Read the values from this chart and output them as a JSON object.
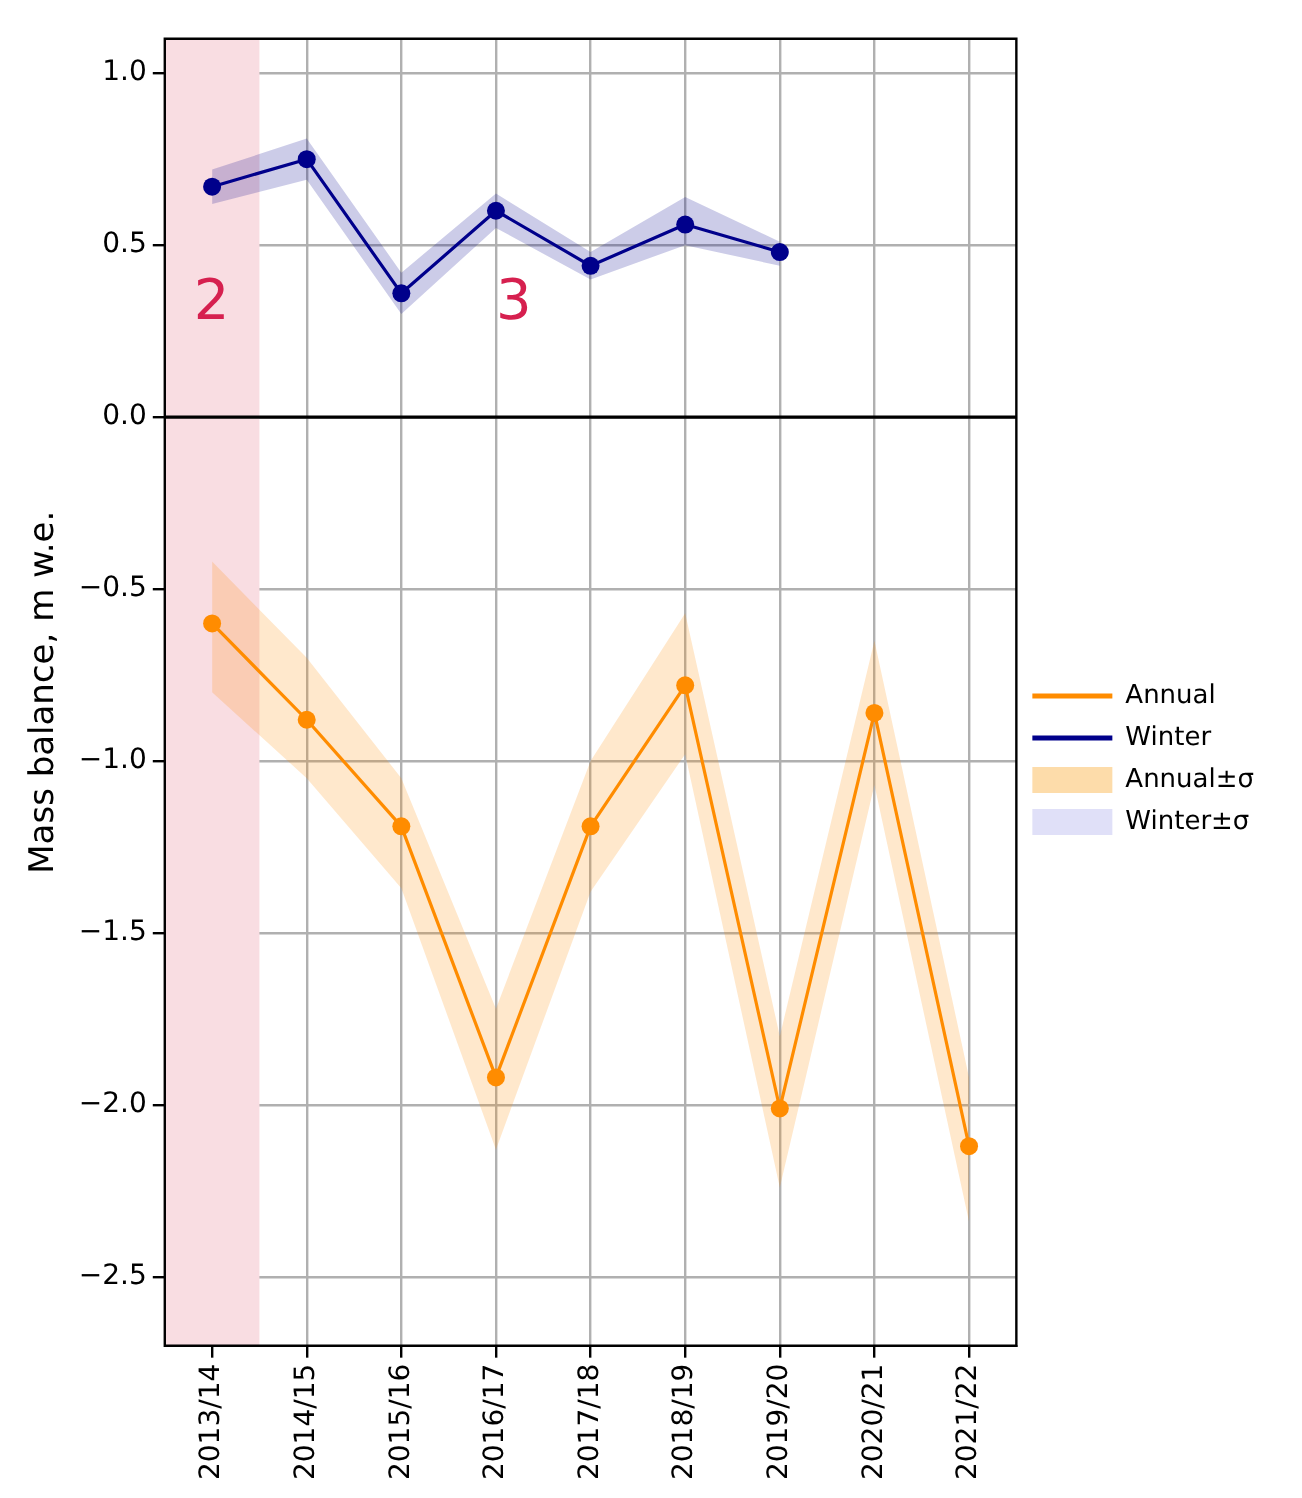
{
  "chart_data": {
    "type": "line",
    "ylabel": "Mass balance, m w.e.",
    "categories": [
      "2013/14",
      "2014/15",
      "2015/16",
      "2016/17",
      "2017/18",
      "2018/19",
      "2019/20",
      "2020/21",
      "2021/22"
    ],
    "series": [
      {
        "name": "Annual",
        "color": "#ff8c00",
        "values": [
          -0.6,
          -0.88,
          -1.19,
          -1.92,
          -1.19,
          -0.78,
          -2.01,
          -0.86,
          -2.12
        ],
        "lower": [
          -0.8,
          -1.05,
          -1.37,
          -2.13,
          -1.38,
          -0.98,
          -2.24,
          -1.07,
          -2.34
        ],
        "upper": [
          -0.42,
          -0.7,
          -1.05,
          -1.72,
          -1.0,
          -0.57,
          -1.8,
          -0.65,
          -1.92
        ]
      },
      {
        "name": "Winter",
        "color": "#00008b",
        "values": [
          0.67,
          0.75,
          0.36,
          0.6,
          0.44,
          0.56,
          0.48,
          null,
          null
        ],
        "lower": [
          0.62,
          0.69,
          0.3,
          0.55,
          0.4,
          0.5,
          0.44,
          null,
          null
        ],
        "upper": [
          0.72,
          0.81,
          0.42,
          0.65,
          0.48,
          0.64,
          0.51,
          null,
          null
        ]
      },
      {
        "name": "Annual±σ",
        "type": "area",
        "color": "#fddcaa",
        "values": [
          null,
          null,
          null,
          null,
          null,
          null,
          null,
          null,
          null
        ]
      },
      {
        "name": "Winter±σ",
        "type": "area",
        "color": "#e0e0f8",
        "values": [
          null,
          null,
          null,
          null,
          null,
          null,
          null,
          null,
          null
        ]
      }
    ],
    "ylim": [
      -2.7,
      1.1
    ],
    "yticks": [
      {
        "value": 1.0,
        "label": "1.0"
      },
      {
        "value": 0.5,
        "label": "0.5"
      },
      {
        "value": 0.0,
        "label": "0.0"
      },
      {
        "value": -0.5,
        "label": "−0.5"
      },
      {
        "value": -1.0,
        "label": "−1.0"
      },
      {
        "value": -1.5,
        "label": "−1.5"
      },
      {
        "value": -2.0,
        "label": "−2.0"
      },
      {
        "value": -2.5,
        "label": "−2.5"
      }
    ],
    "ref_lines": [
      {
        "axis": "y",
        "value": 0,
        "color": "#000000"
      }
    ],
    "bands": [
      {
        "axis": "x",
        "from": "2013/14",
        "to": "2013/14",
        "color": "#f9dde2"
      }
    ],
    "annotations": [
      "2",
      "3"
    ],
    "grid": true,
    "legend": "right",
    "marker": "circle",
    "line_style": "solid"
  }
}
